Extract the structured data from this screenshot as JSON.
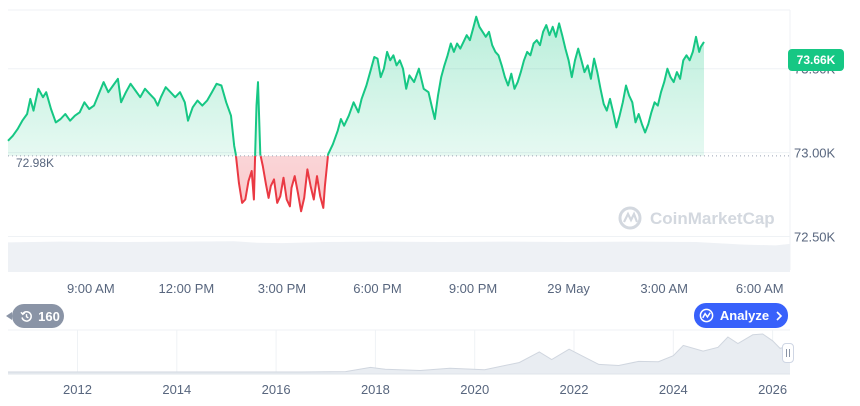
{
  "chart_data": {
    "type": "area",
    "watermark": "CoinMarketCap",
    "current_price_label": "73.66K",
    "baseline_label": "72.98K",
    "baseline_value": 72.98,
    "ylim": [
      72.3,
      73.85
    ],
    "y_ticks": [
      {
        "value": 73.5,
        "label": "73.50K"
      },
      {
        "value": 73.0,
        "label": "73.00K"
      },
      {
        "value": 72.5,
        "label": "72.50K"
      }
    ],
    "x_tick_labels": [
      "9:00 AM",
      "12:00 PM",
      "3:00 PM",
      "6:00 PM",
      "9:00 PM",
      "29 May",
      "3:00 AM",
      "6:00 AM"
    ],
    "x_tick_hours": [
      3,
      6,
      9,
      12,
      15,
      18,
      21,
      24
    ],
    "xlim_hours": [
      0.4,
      24.95
    ],
    "price_series": [
      [
        0.4,
        73.07
      ],
      [
        0.55,
        73.1
      ],
      [
        0.7,
        73.14
      ],
      [
        0.85,
        73.19
      ],
      [
        1.0,
        73.23
      ],
      [
        1.1,
        73.32
      ],
      [
        1.2,
        73.25
      ],
      [
        1.35,
        73.38
      ],
      [
        1.5,
        73.33
      ],
      [
        1.6,
        73.36
      ],
      [
        1.75,
        73.26
      ],
      [
        1.9,
        73.18
      ],
      [
        2.05,
        73.2
      ],
      [
        2.2,
        73.23
      ],
      [
        2.35,
        73.19
      ],
      [
        2.5,
        73.22
      ],
      [
        2.65,
        73.24
      ],
      [
        2.8,
        73.3
      ],
      [
        2.95,
        73.26
      ],
      [
        3.1,
        73.28
      ],
      [
        3.25,
        73.35
      ],
      [
        3.4,
        73.42
      ],
      [
        3.55,
        73.36
      ],
      [
        3.7,
        73.4
      ],
      [
        3.85,
        73.44
      ],
      [
        3.95,
        73.3
      ],
      [
        4.1,
        73.36
      ],
      [
        4.25,
        73.41
      ],
      [
        4.4,
        73.37
      ],
      [
        4.55,
        73.33
      ],
      [
        4.7,
        73.38
      ],
      [
        4.85,
        73.35
      ],
      [
        5.0,
        73.32
      ],
      [
        5.1,
        73.28
      ],
      [
        5.2,
        73.33
      ],
      [
        5.35,
        73.39
      ],
      [
        5.5,
        73.36
      ],
      [
        5.65,
        73.33
      ],
      [
        5.8,
        73.36
      ],
      [
        5.95,
        73.3
      ],
      [
        6.05,
        73.19
      ],
      [
        6.2,
        73.27
      ],
      [
        6.35,
        73.31
      ],
      [
        6.5,
        73.28
      ],
      [
        6.65,
        73.31
      ],
      [
        6.8,
        73.36
      ],
      [
        6.95,
        73.41
      ],
      [
        7.1,
        73.4
      ],
      [
        7.25,
        73.3
      ],
      [
        7.4,
        73.22
      ],
      [
        7.5,
        73.04
      ],
      [
        7.55,
        72.99
      ],
      [
        7.65,
        72.82
      ],
      [
        7.75,
        72.7
      ],
      [
        7.85,
        72.72
      ],
      [
        7.95,
        72.83
      ],
      [
        8.05,
        72.89
      ],
      [
        8.12,
        72.72
      ],
      [
        8.2,
        73.28
      ],
      [
        8.25,
        73.42
      ],
      [
        8.32,
        72.99
      ],
      [
        8.4,
        72.92
      ],
      [
        8.5,
        72.81
      ],
      [
        8.58,
        72.73
      ],
      [
        8.65,
        72.8
      ],
      [
        8.75,
        72.84
      ],
      [
        8.85,
        72.7
      ],
      [
        8.95,
        72.74
      ],
      [
        9.05,
        72.85
      ],
      [
        9.15,
        72.72
      ],
      [
        9.25,
        72.68
      ],
      [
        9.3,
        72.79
      ],
      [
        9.4,
        72.86
      ],
      [
        9.5,
        72.76
      ],
      [
        9.6,
        72.65
      ],
      [
        9.7,
        72.73
      ],
      [
        9.8,
        72.9
      ],
      [
        9.9,
        72.8
      ],
      [
        10.0,
        72.72
      ],
      [
        10.1,
        72.86
      ],
      [
        10.2,
        72.74
      ],
      [
        10.3,
        72.67
      ],
      [
        10.35,
        72.8
      ],
      [
        10.45,
        72.99
      ],
      [
        10.6,
        73.05
      ],
      [
        10.75,
        73.13
      ],
      [
        10.85,
        73.2
      ],
      [
        10.95,
        73.16
      ],
      [
        11.1,
        73.22
      ],
      [
        11.25,
        73.3
      ],
      [
        11.4,
        73.24
      ],
      [
        11.5,
        73.32
      ],
      [
        11.65,
        73.4
      ],
      [
        11.8,
        73.5
      ],
      [
        11.9,
        73.57
      ],
      [
        12.0,
        73.56
      ],
      [
        12.1,
        73.45
      ],
      [
        12.2,
        73.5
      ],
      [
        12.3,
        73.6
      ],
      [
        12.4,
        73.55
      ],
      [
        12.5,
        73.58
      ],
      [
        12.6,
        73.52
      ],
      [
        12.7,
        73.55
      ],
      [
        12.8,
        73.5
      ],
      [
        12.9,
        73.38
      ],
      [
        13.0,
        73.46
      ],
      [
        13.15,
        73.42
      ],
      [
        13.3,
        73.5
      ],
      [
        13.45,
        73.38
      ],
      [
        13.6,
        73.36
      ],
      [
        13.7,
        73.28
      ],
      [
        13.8,
        73.2
      ],
      [
        13.9,
        73.34
      ],
      [
        14.0,
        73.45
      ],
      [
        14.1,
        73.52
      ],
      [
        14.2,
        73.58
      ],
      [
        14.3,
        73.65
      ],
      [
        14.4,
        73.6
      ],
      [
        14.5,
        73.65
      ],
      [
        14.6,
        73.62
      ],
      [
        14.7,
        73.66
      ],
      [
        14.8,
        73.7
      ],
      [
        14.9,
        73.67
      ],
      [
        15.0,
        73.74
      ],
      [
        15.1,
        73.81
      ],
      [
        15.2,
        73.75
      ],
      [
        15.3,
        73.72
      ],
      [
        15.4,
        73.69
      ],
      [
        15.5,
        73.72
      ],
      [
        15.6,
        73.64
      ],
      [
        15.7,
        73.6
      ],
      [
        15.8,
        73.58
      ],
      [
        15.9,
        73.52
      ],
      [
        16.0,
        73.45
      ],
      [
        16.1,
        73.4
      ],
      [
        16.2,
        73.47
      ],
      [
        16.3,
        73.38
      ],
      [
        16.4,
        73.42
      ],
      [
        16.5,
        73.48
      ],
      [
        16.6,
        73.55
      ],
      [
        16.7,
        73.6
      ],
      [
        16.8,
        73.58
      ],
      [
        16.9,
        73.65
      ],
      [
        17.0,
        73.67
      ],
      [
        17.1,
        73.64
      ],
      [
        17.2,
        73.72
      ],
      [
        17.3,
        73.76
      ],
      [
        17.4,
        73.7
      ],
      [
        17.5,
        73.75
      ],
      [
        17.6,
        73.69
      ],
      [
        17.7,
        73.77
      ],
      [
        17.8,
        73.7
      ],
      [
        17.9,
        73.62
      ],
      [
        18.0,
        73.55
      ],
      [
        18.1,
        73.45
      ],
      [
        18.2,
        73.55
      ],
      [
        18.3,
        73.62
      ],
      [
        18.4,
        73.55
      ],
      [
        18.5,
        73.48
      ],
      [
        18.6,
        73.52
      ],
      [
        18.7,
        73.44
      ],
      [
        18.8,
        73.56
      ],
      [
        18.9,
        73.48
      ],
      [
        19.0,
        73.38
      ],
      [
        19.1,
        73.29
      ],
      [
        19.2,
        73.25
      ],
      [
        19.3,
        73.32
      ],
      [
        19.4,
        73.24
      ],
      [
        19.5,
        73.15
      ],
      [
        19.6,
        73.22
      ],
      [
        19.7,
        73.3
      ],
      [
        19.8,
        73.4
      ],
      [
        19.9,
        73.34
      ],
      [
        20.0,
        73.3
      ],
      [
        20.1,
        73.18
      ],
      [
        20.2,
        73.23
      ],
      [
        20.3,
        73.17
      ],
      [
        20.4,
        73.12
      ],
      [
        20.5,
        73.17
      ],
      [
        20.6,
        73.24
      ],
      [
        20.7,
        73.3
      ],
      [
        20.8,
        73.28
      ],
      [
        20.9,
        73.36
      ],
      [
        21.0,
        73.42
      ],
      [
        21.1,
        73.5
      ],
      [
        21.2,
        73.45
      ],
      [
        21.3,
        73.42
      ],
      [
        21.4,
        73.48
      ],
      [
        21.5,
        73.44
      ],
      [
        21.6,
        73.55
      ],
      [
        21.7,
        73.58
      ],
      [
        21.8,
        73.55
      ],
      [
        21.9,
        73.6
      ],
      [
        22.0,
        73.69
      ],
      [
        22.1,
        73.6
      ],
      [
        22.15,
        73.63
      ],
      [
        22.25,
        73.66
      ]
    ],
    "volume_profile": [
      [
        0.4,
        0.78
      ],
      [
        2.0,
        0.8
      ],
      [
        4.0,
        0.79
      ],
      [
        6.0,
        0.8
      ],
      [
        7.5,
        0.81
      ],
      [
        8.2,
        0.77
      ],
      [
        9.0,
        0.76
      ],
      [
        10.4,
        0.79
      ],
      [
        12.0,
        0.8
      ],
      [
        14.0,
        0.79
      ],
      [
        16.0,
        0.8
      ],
      [
        18.0,
        0.79
      ],
      [
        20.0,
        0.8
      ],
      [
        22.0,
        0.79
      ],
      [
        23.5,
        0.72
      ],
      [
        24.5,
        0.7
      ],
      [
        24.95,
        0.74
      ]
    ]
  },
  "navigator": {
    "year_labels": [
      "2012",
      "2014",
      "2016",
      "2018",
      "2020",
      "2022",
      "2024",
      "2026"
    ],
    "year_ticks": [
      2012,
      2014,
      2016,
      2018,
      2020,
      2022,
      2024,
      2026
    ],
    "year_range": [
      2010.6,
      2026.35
    ],
    "history": [
      [
        2010.6,
        0.0
      ],
      [
        2013.0,
        0.0
      ],
      [
        2016.5,
        0.0
      ],
      [
        2017.4,
        0.01
      ],
      [
        2017.9,
        0.12
      ],
      [
        2018.2,
        0.07
      ],
      [
        2018.9,
        0.04
      ],
      [
        2019.5,
        0.1
      ],
      [
        2020.2,
        0.06
      ],
      [
        2020.9,
        0.25
      ],
      [
        2021.3,
        0.53
      ],
      [
        2021.55,
        0.33
      ],
      [
        2021.9,
        0.6
      ],
      [
        2022.2,
        0.4
      ],
      [
        2022.5,
        0.2
      ],
      [
        2022.9,
        0.17
      ],
      [
        2023.3,
        0.28
      ],
      [
        2023.7,
        0.27
      ],
      [
        2024.0,
        0.43
      ],
      [
        2024.2,
        0.7
      ],
      [
        2024.6,
        0.55
      ],
      [
        2024.9,
        0.65
      ],
      [
        2025.1,
        0.92
      ],
      [
        2025.3,
        0.75
      ],
      [
        2025.6,
        0.98
      ],
      [
        2025.8,
        1.0
      ],
      [
        2026.0,
        0.82
      ],
      [
        2026.15,
        0.62
      ],
      [
        2026.35,
        0.7
      ]
    ]
  },
  "controls": {
    "timeframe_label": "160",
    "analyze_label": "Analyze"
  },
  "colors": {
    "up": "#16c784",
    "down": "#ea3943",
    "brand": "#3861fb",
    "grid": "#eff2f5",
    "text": "#58667e"
  },
  "icons": {
    "history": "history-icon",
    "analyze": "ai-analyze-icon",
    "arrow": "chevron-right-icon",
    "logo": "coinmarketcap-logo-icon"
  }
}
